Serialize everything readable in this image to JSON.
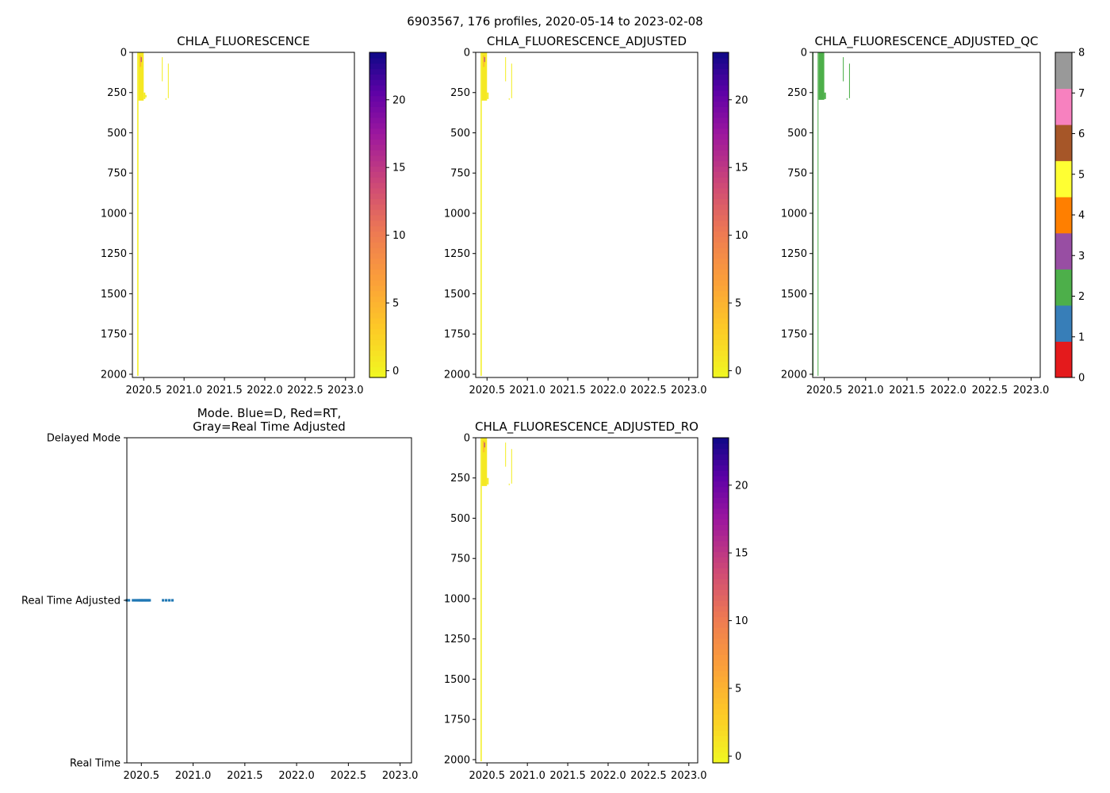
{
  "figure": {
    "suptitle": "6903567, 176 profiles, 2020-05-14 to 2023-02-08"
  },
  "chart_data": [
    {
      "id": "raw",
      "type": "heatmap",
      "title": "CHLA_FLUORESCENCE",
      "xlim": [
        2020.36,
        2023.11
      ],
      "ylim": [
        2020,
        0
      ],
      "x_ticks": [
        2020.5,
        2021.0,
        2021.5,
        2022.0,
        2022.5,
        2023.0
      ],
      "x_tick_labels": [
        "2020.5",
        "2021.0",
        "2021.5",
        "2022.0",
        "2022.5",
        "2023.0"
      ],
      "y_ticks": [
        0,
        250,
        500,
        750,
        1000,
        1250,
        1500,
        1750,
        2000
      ],
      "y_tick_labels": [
        "0",
        "250",
        "500",
        "750",
        "1000",
        "1250",
        "1500",
        "1750",
        "2000"
      ],
      "colorbar": {
        "colormap": "plasma_r",
        "range": [
          -0.5,
          23.5
        ],
        "ticks": [
          0,
          5,
          10,
          15,
          20
        ],
        "tick_labels": [
          "0",
          "5",
          "10",
          "15",
          "20"
        ]
      },
      "strips": [
        {
          "x0": 2020.42,
          "x1": 2020.435,
          "d0": 0,
          "d1": 2010,
          "v": 0.3
        },
        {
          "x0": 2020.435,
          "x1": 2020.5,
          "d0": 0,
          "d1": 300,
          "v": 0.8
        },
        {
          "x0": 2020.45,
          "x1": 2020.47,
          "d0": 20,
          "d1": 90,
          "v": 4
        },
        {
          "x0": 2020.465,
          "x1": 2020.472,
          "d0": 30,
          "d1": 60,
          "v": 16
        },
        {
          "x0": 2020.5,
          "x1": 2020.52,
          "d0": 250,
          "d1": 290,
          "v": 0.5
        },
        {
          "x0": 2020.52,
          "x1": 2020.535,
          "d0": 265,
          "d1": 280,
          "v": 0.5
        },
        {
          "x0": 2020.725,
          "x1": 2020.735,
          "d0": 30,
          "d1": 180,
          "v": 0.4
        },
        {
          "x0": 2020.77,
          "x1": 2020.78,
          "d0": 285,
          "d1": 295,
          "v": 0.4
        },
        {
          "x0": 2020.8,
          "x1": 2020.81,
          "d0": 70,
          "d1": 285,
          "v": 0.4
        }
      ]
    },
    {
      "id": "adjusted",
      "type": "heatmap",
      "title": "CHLA_FLUORESCENCE_ADJUSTED",
      "xlim": [
        2020.36,
        2023.11
      ],
      "ylim": [
        2020,
        0
      ],
      "x_ticks": [
        2020.5,
        2021.0,
        2021.5,
        2022.0,
        2022.5,
        2023.0
      ],
      "x_tick_labels": [
        "2020.5",
        "2021.0",
        "2021.5",
        "2022.0",
        "2022.5",
        "2023.0"
      ],
      "y_ticks": [
        0,
        250,
        500,
        750,
        1000,
        1250,
        1500,
        1750,
        2000
      ],
      "y_tick_labels": [
        "0",
        "250",
        "500",
        "750",
        "1000",
        "1250",
        "1500",
        "1750",
        "2000"
      ],
      "colorbar": {
        "colormap": "plasma_r",
        "range": [
          -0.5,
          23.5
        ],
        "ticks": [
          0,
          5,
          10,
          15,
          20
        ],
        "tick_labels": [
          "0",
          "5",
          "10",
          "15",
          "20"
        ]
      },
      "strips": [
        {
          "x0": 2020.42,
          "x1": 2020.435,
          "d0": 0,
          "d1": 2010,
          "v": 0.3
        },
        {
          "x0": 2020.435,
          "x1": 2020.5,
          "d0": 0,
          "d1": 300,
          "v": 0.8
        },
        {
          "x0": 2020.45,
          "x1": 2020.47,
          "d0": 20,
          "d1": 90,
          "v": 4
        },
        {
          "x0": 2020.465,
          "x1": 2020.472,
          "d0": 30,
          "d1": 60,
          "v": 16
        },
        {
          "x0": 2020.5,
          "x1": 2020.52,
          "d0": 250,
          "d1": 290,
          "v": 0.5
        },
        {
          "x0": 2020.725,
          "x1": 2020.735,
          "d0": 30,
          "d1": 180,
          "v": 0.4
        },
        {
          "x0": 2020.77,
          "x1": 2020.78,
          "d0": 285,
          "d1": 295,
          "v": 0.4
        },
        {
          "x0": 2020.8,
          "x1": 2020.81,
          "d0": 70,
          "d1": 285,
          "v": 0.4
        }
      ]
    },
    {
      "id": "qc",
      "type": "heatmap",
      "title": "CHLA_FLUORESCENCE_ADJUSTED_QC",
      "xlim": [
        2020.36,
        2023.11
      ],
      "ylim": [
        2020,
        0
      ],
      "x_ticks": [
        2020.5,
        2021.0,
        2021.5,
        2022.0,
        2022.5,
        2023.0
      ],
      "x_tick_labels": [
        "2020.5",
        "2021.0",
        "2021.5",
        "2022.0",
        "2022.5",
        "2023.0"
      ],
      "y_ticks": [
        0,
        250,
        500,
        750,
        1000,
        1250,
        1500,
        1750,
        2000
      ],
      "y_tick_labels": [
        "0",
        "250",
        "500",
        "750",
        "1000",
        "1250",
        "1500",
        "1750",
        "2000"
      ],
      "colorbar": {
        "colormap": "qc_categorical",
        "range": [
          0,
          8
        ],
        "ticks": [
          0,
          1,
          2,
          3,
          4,
          5,
          6,
          7,
          8
        ],
        "tick_labels": [
          "0",
          "1",
          "2",
          "3",
          "4",
          "5",
          "6",
          "7",
          "8"
        ],
        "categories": [
          "#e41a1c",
          "#377eb8",
          "#4daf4a",
          "#984ea3",
          "#ff7f00",
          "#ffff33",
          "#a65628",
          "#f781bf",
          "#999999"
        ]
      },
      "strips": [
        {
          "x0": 2020.36,
          "x1": 2020.37,
          "d0": 0,
          "d1": 2010,
          "v": 2
        },
        {
          "x0": 2020.42,
          "x1": 2020.428,
          "d0": 0,
          "d1": 2010,
          "v": 2
        },
        {
          "x0": 2020.43,
          "x1": 2020.5,
          "d0": 0,
          "d1": 295,
          "v": 2
        },
        {
          "x0": 2020.5,
          "x1": 2020.52,
          "d0": 250,
          "d1": 290,
          "v": 2
        },
        {
          "x0": 2020.725,
          "x1": 2020.735,
          "d0": 30,
          "d1": 180,
          "v": 2
        },
        {
          "x0": 2020.77,
          "x1": 2020.78,
          "d0": 285,
          "d1": 295,
          "v": 2
        },
        {
          "x0": 2020.8,
          "x1": 2020.81,
          "d0": 70,
          "d1": 285,
          "v": 2
        }
      ]
    },
    {
      "id": "mode",
      "type": "scatter",
      "title": "Mode. Blue=D, Red=RT,\nGray=Real Time Adjusted",
      "xlim": [
        2020.36,
        2023.11
      ],
      "x_ticks": [
        2020.5,
        2021.0,
        2021.5,
        2022.0,
        2022.5,
        2023.0
      ],
      "x_tick_labels": [
        "2020.5",
        "2021.0",
        "2021.5",
        "2022.0",
        "2022.5",
        "2023.0"
      ],
      "y_categories": [
        "Real Time",
        "Real Time Adjusted",
        "Delayed Mode"
      ],
      "color": "#1f77b4",
      "points_x": [
        2020.36,
        2020.38,
        2020.42,
        2020.44,
        2020.455,
        2020.47,
        2020.48,
        2020.49,
        2020.5,
        2020.51,
        2020.52,
        2020.53,
        2020.54,
        2020.55,
        2020.56,
        2020.57,
        2020.58,
        2020.71,
        2020.74,
        2020.77,
        2020.8
      ],
      "points_y": "Real Time Adjusted"
    },
    {
      "id": "adjusted_ro",
      "type": "heatmap",
      "title": "CHLA_FLUORESCENCE_ADJUSTED_RO",
      "xlim": [
        2020.36,
        2023.11
      ],
      "ylim": [
        2020,
        0
      ],
      "x_ticks": [
        2020.5,
        2021.0,
        2021.5,
        2022.0,
        2022.5,
        2023.0
      ],
      "x_tick_labels": [
        "2020.5",
        "2021.0",
        "2021.5",
        "2022.0",
        "2022.5",
        "2023.0"
      ],
      "y_ticks": [
        0,
        250,
        500,
        750,
        1000,
        1250,
        1500,
        1750,
        2000
      ],
      "y_tick_labels": [
        "0",
        "250",
        "500",
        "750",
        "1000",
        "1250",
        "1500",
        "1750",
        "2000"
      ],
      "colorbar": {
        "colormap": "plasma_r",
        "range": [
          -0.5,
          23.5
        ],
        "ticks": [
          0,
          5,
          10,
          15,
          20
        ],
        "tick_labels": [
          "0",
          "5",
          "10",
          "15",
          "20"
        ]
      },
      "strips": [
        {
          "x0": 2020.42,
          "x1": 2020.435,
          "d0": 0,
          "d1": 2010,
          "v": 0.3
        },
        {
          "x0": 2020.435,
          "x1": 2020.5,
          "d0": 0,
          "d1": 300,
          "v": 0.8
        },
        {
          "x0": 2020.45,
          "x1": 2020.47,
          "d0": 20,
          "d1": 90,
          "v": 4
        },
        {
          "x0": 2020.465,
          "x1": 2020.472,
          "d0": 30,
          "d1": 60,
          "v": 16
        },
        {
          "x0": 2020.5,
          "x1": 2020.52,
          "d0": 250,
          "d1": 290,
          "v": 0.5
        },
        {
          "x0": 2020.725,
          "x1": 2020.735,
          "d0": 30,
          "d1": 180,
          "v": 0.4
        },
        {
          "x0": 2020.77,
          "x1": 2020.78,
          "d0": 285,
          "d1": 295,
          "v": 0.4
        },
        {
          "x0": 2020.8,
          "x1": 2020.81,
          "d0": 70,
          "d1": 285,
          "v": 0.4
        }
      ]
    }
  ]
}
